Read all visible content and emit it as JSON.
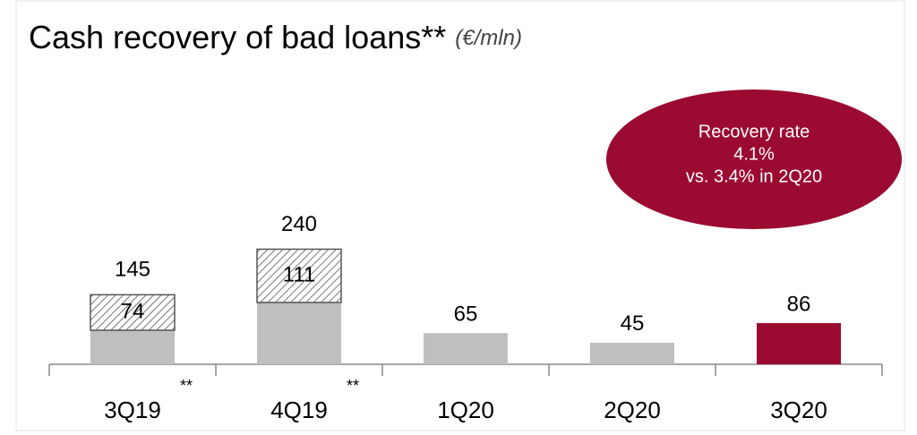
{
  "chart_data": {
    "type": "stacked_bar",
    "title": "Cash recovery of bad loans**",
    "subtitle": "(€/mln)",
    "categories": [
      "3Q19",
      "4Q19",
      "1Q20",
      "2Q20",
      "3Q20"
    ],
    "category_notes": [
      "**",
      "**",
      null,
      null,
      null
    ],
    "series": [
      {
        "values": [
          71,
          129,
          65,
          45,
          86
        ],
        "colors": [
          "#bfbfbf",
          "#bfbfbf",
          "#bfbfbf",
          "#bfbfbf",
          "#9b0a31"
        ]
      },
      {
        "values": [
          74,
          111,
          null,
          null,
          null
        ],
        "color": "hatch"
      }
    ],
    "totals": [
      145,
      240,
      null,
      null,
      null
    ],
    "ylim": [
      0,
      560
    ],
    "annotation": {
      "lines": [
        "Recovery rate",
        "4.1%",
        "vs. 3.4% in 2Q20"
      ],
      "color": "#9b0a31"
    }
  }
}
